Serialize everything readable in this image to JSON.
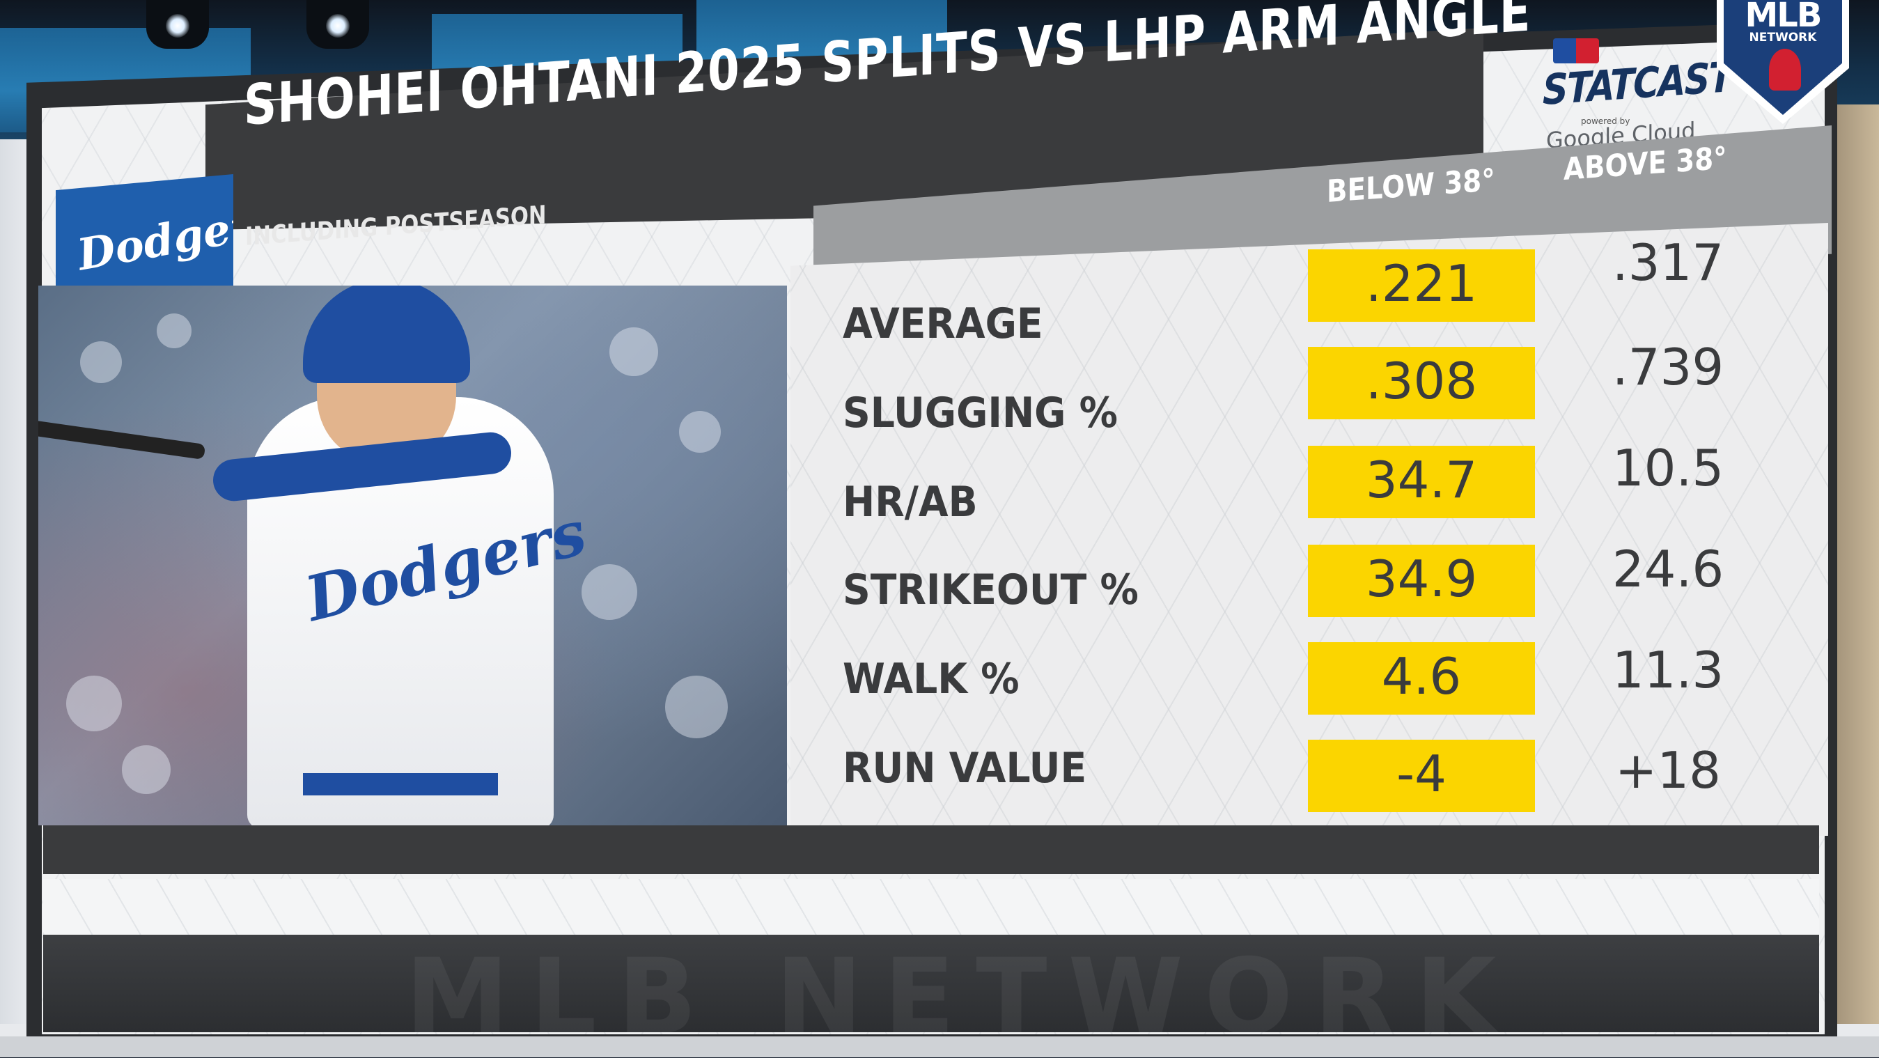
{
  "graphic": {
    "title": "SHOHEI OHTANI 2025 SPLITS VS LHP ARM ANGLE",
    "subtitle": "INCLUDING POSTSEASON",
    "team_logo_text": "Dodgers",
    "jersey_text": "Dodgers",
    "sponsor": {
      "name": "STATCAST",
      "powered_by": "powered by",
      "partner": "Google Cloud"
    },
    "network": {
      "name": "MLB",
      "sub": "NETWORK",
      "watermark": "MLB NETWORK"
    },
    "columns": [
      "BELOW 38°",
      "ABOVE 38°"
    ],
    "highlight_color": "#fbd500",
    "rows": [
      {
        "label": "AVERAGE",
        "below": ".221",
        "above": ".317"
      },
      {
        "label": "SLUGGING %",
        "below": ".308",
        "above": ".739"
      },
      {
        "label": "HR/AB",
        "below": "34.7",
        "above": "10.5"
      },
      {
        "label": "STRIKEOUT %",
        "below": "34.9",
        "above": "24.6"
      },
      {
        "label": "WALK %",
        "below": "4.6",
        "above": "11.3"
      },
      {
        "label": "RUN VALUE",
        "below": "-4",
        "above": "+18"
      }
    ]
  }
}
